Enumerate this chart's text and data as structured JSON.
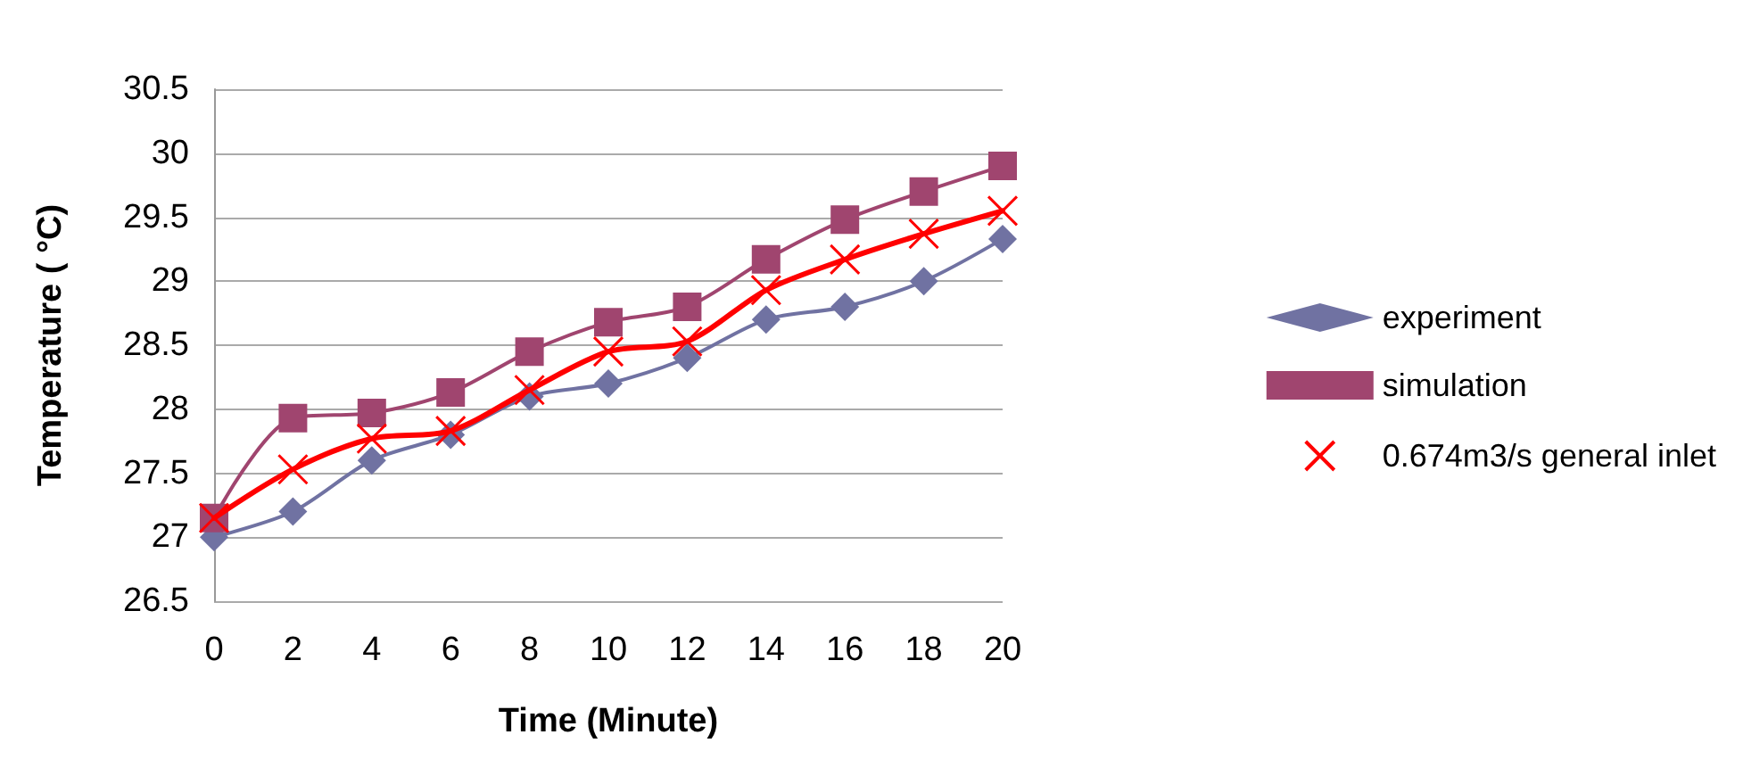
{
  "chart_data": {
    "type": "line",
    "xlabel": "Time (Minute)",
    "ylabel": "Temperature ( °C)",
    "categories": [
      "0",
      "2",
      "4",
      "6",
      "8",
      "10",
      "12",
      "14",
      "16",
      "18",
      "20"
    ],
    "series": [
      {
        "name": "experiment",
        "color": "#7072a2",
        "marker": "diamond",
        "values": [
          27.0,
          27.2,
          27.6,
          27.8,
          28.1,
          28.2,
          28.4,
          28.7,
          28.8,
          29.0,
          29.33
        ]
      },
      {
        "name": "simulation",
        "color": "#a0456f",
        "marker": "square",
        "values": [
          27.15,
          27.93,
          27.97,
          28.13,
          28.45,
          28.68,
          28.8,
          29.17,
          29.48,
          29.7,
          29.9
        ]
      },
      {
        "name": "0.674m3/s general inlet",
        "color": "#ff0000",
        "marker": "cross",
        "values": [
          27.15,
          27.53,
          27.77,
          27.83,
          28.15,
          28.45,
          28.53,
          28.93,
          29.17,
          29.37,
          29.55
        ]
      }
    ],
    "ylim": [
      26.5,
      30.5
    ],
    "yticks": [
      26.5,
      27,
      27.5,
      28,
      28.5,
      29,
      29.5,
      30,
      30.5
    ],
    "grid": "y",
    "legend": "right"
  }
}
